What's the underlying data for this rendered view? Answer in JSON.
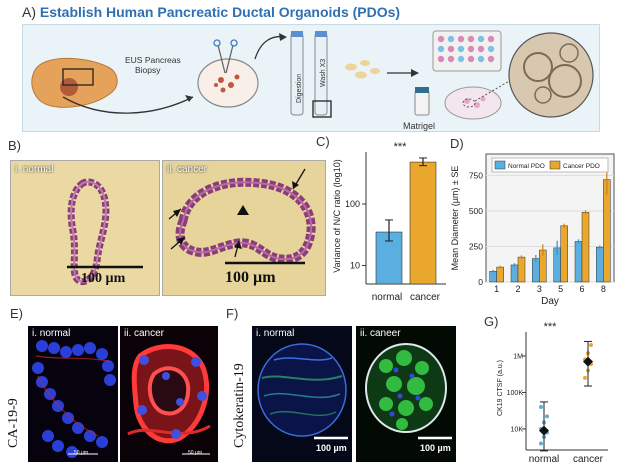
{
  "panel_a": {
    "letter": "A)",
    "title": "Establish Human Pancreatic Ductal Organoids (PDOs)",
    "eus_label_1": "EUS Pancreas",
    "eus_label_2": "Biopsy",
    "digestion_label": "Digestion",
    "wash_label": "Wash X3",
    "matrigel_label": "Matrigel",
    "colors": {
      "panel_bg": "#eaf3f8",
      "title": "#2f6fb3",
      "pancreas": "#e5a25a"
    }
  },
  "panel_b": {
    "letter": "B)",
    "normal_label": "i. normal",
    "cancer_label": "ii. cancer",
    "scale_normal": "100 µm",
    "scale_cancer": "100 µm"
  },
  "panel_c": {
    "letter": "C)",
    "significance": "***",
    "ylabel": "Variance of N/C ratio (log10)",
    "ytick_labels": [
      "10",
      "100"
    ],
    "chart_data": {
      "type": "bar",
      "categories": [
        "normal",
        "cancer"
      ],
      "values": [
        35,
        480
      ],
      "errors_low": [
        25,
        420
      ],
      "errors_high": [
        55,
        560
      ],
      "ylim": [
        5,
        700
      ],
      "log_scale": true,
      "colors": [
        "#5aaee0",
        "#eaa72d"
      ]
    }
  },
  "panel_d": {
    "letter": "D)",
    "ylabel": "Mean Diameter (µm) ± SE",
    "xlabel": "Day",
    "ytick_labels": [
      "0",
      "250",
      "500",
      "750"
    ],
    "chart_data": {
      "type": "bar",
      "categories": [
        "1",
        "2",
        "3",
        "5",
        "6",
        "8"
      ],
      "ylim": [
        0,
        900
      ],
      "series": [
        {
          "name": "Normal PDO",
          "color": "#5aaee0",
          "values": [
            75,
            120,
            165,
            240,
            285,
            245
          ],
          "errors": [
            10,
            12,
            25,
            50,
            15,
            12
          ]
        },
        {
          "name": "Cancer PDO",
          "color": "#eaa72d",
          "values": [
            105,
            175,
            225,
            395,
            490,
            720
          ],
          "errors": [
            10,
            12,
            40,
            15,
            15,
            110
          ]
        }
      ],
      "legend": "top-left"
    }
  },
  "panel_e": {
    "letter": "E)",
    "side_label": "CA-19-9",
    "normal_label": "i. normal",
    "cancer_label": "ii. cancer",
    "scale_normal": "50 µm",
    "scale_cancer": "50 µm"
  },
  "panel_f": {
    "letter": "F)",
    "side_label": "Cytokeratin-19",
    "normal_label": "i. normal",
    "cancer_label": "ii. caneer",
    "scale_normal": "100 µm",
    "scale_cancer": "100 µm"
  },
  "panel_g": {
    "letter": "G)",
    "significance": "***",
    "ylabel": "CK19 CTSF (a.u.)",
    "ytick_labels": [
      "10K",
      "100K",
      "1M"
    ],
    "chart_data": {
      "type": "scatter",
      "categories": [
        "normal",
        "cancer"
      ],
      "log_scale": true,
      "ylim": [
        3000,
        4000000
      ],
      "mean": [
        9000,
        700000
      ],
      "err_low": [
        2500,
        150000
      ],
      "err_high": [
        55000,
        2500000
      ],
      "points": [
        {
          "group": "normal",
          "values": [
            4000,
            6000,
            8000,
            10000,
            15000,
            22000,
            40000
          ]
        },
        {
          "group": "cancer",
          "values": [
            250000,
            400000,
            600000,
            800000,
            1200000,
            2000000
          ]
        }
      ],
      "colors": [
        "#5aaee0",
        "#eaa72d"
      ]
    }
  }
}
